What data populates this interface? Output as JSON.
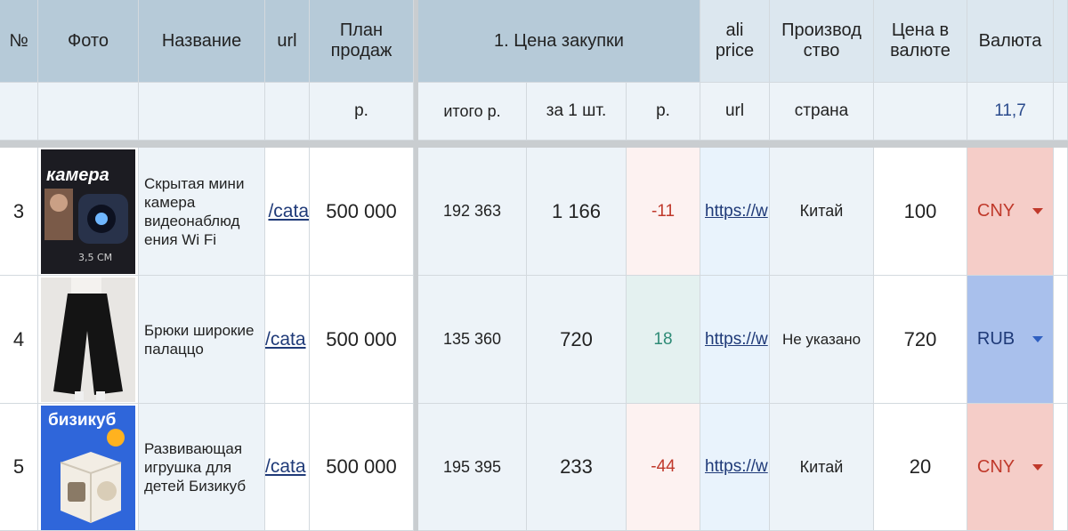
{
  "header": {
    "num": "№",
    "photo": "Фото",
    "name": "Название",
    "url": "url",
    "plan": "План продаж",
    "purchase": "1. Цена закупки",
    "ali": "ali price",
    "producer": "Производ ство",
    "price_cur": "Цена в валюте",
    "currency": "Валюта"
  },
  "subheader": {
    "plan_unit": "р.",
    "total": "итого р.",
    "per_unit": "за 1 шт.",
    "diff_unit": "р.",
    "ali_url": "url",
    "country": "страна",
    "rate": "11,7"
  },
  "rows": [
    {
      "num": "3",
      "name": "Скрытая мини камера видеонаблюд ения Wi Fi",
      "url": "/cata",
      "plan": "500 000",
      "total": "192 363",
      "per_unit": "1 166",
      "diff": "-11",
      "ali": "https://w",
      "country": "Китай",
      "price": "100",
      "currency": "CNY",
      "photo_text": "камера"
    },
    {
      "num": "4",
      "name": "Брюки широкие палаццо",
      "url": "/cata",
      "plan": "500 000",
      "total": "135 360",
      "per_unit": "720",
      "diff": "18",
      "ali": "https://w",
      "country": "Не указано",
      "price": "720",
      "currency": "RUB"
    },
    {
      "num": "5",
      "name": "Развивающая игрушка для детей Бизикуб",
      "url": "/cata",
      "plan": "500 000",
      "total": "195 395",
      "per_unit": "233",
      "diff": "-44",
      "ali": "https://w",
      "country": "Китай",
      "price": "20",
      "currency": "CNY",
      "photo_text": "бизикуб"
    }
  ],
  "colors": {
    "header_bg": "#b6cad8",
    "subheader_bg": "#edf3f8",
    "cny_bg": "#f5cdc8",
    "rub_bg": "#a9c0ec",
    "neg_bg": "#fdf2f1",
    "pos_bg": "#e4f1f0",
    "neg_text": "#c0392b",
    "pos_text": "#2e8b76"
  }
}
